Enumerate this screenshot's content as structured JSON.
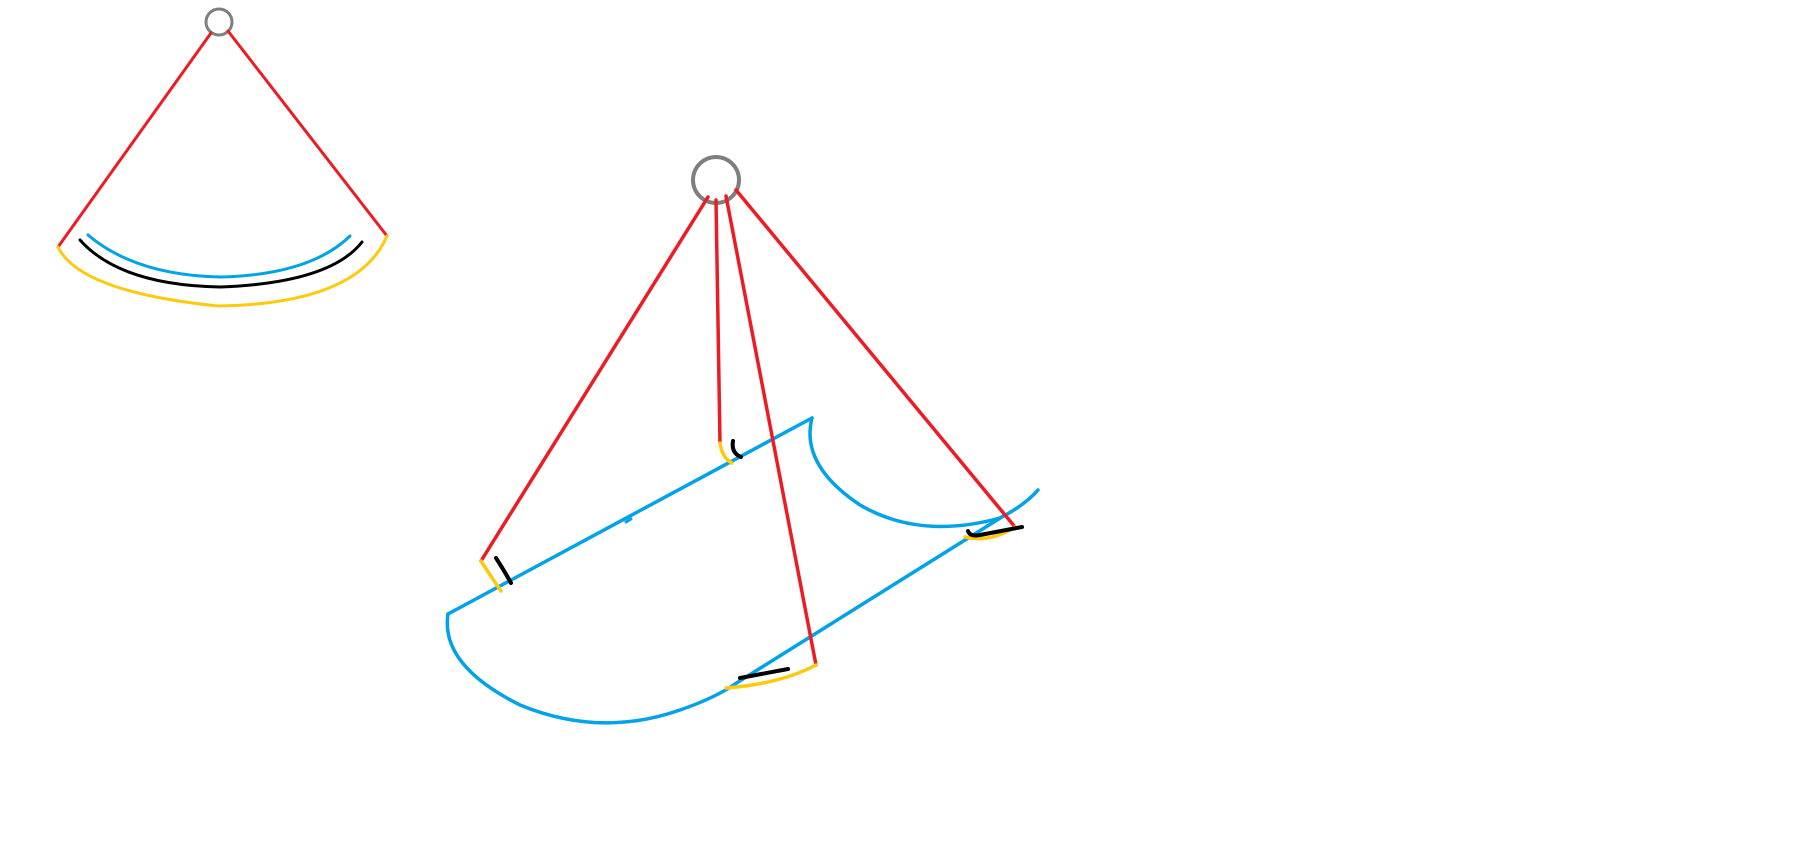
{
  "colors": {
    "background": "#ffffff",
    "red": "#ed1c24",
    "blue": "#00a2e8",
    "yellow": "#ffc90e",
    "black": "#000000",
    "gray": "#7f7f7f"
  }
}
